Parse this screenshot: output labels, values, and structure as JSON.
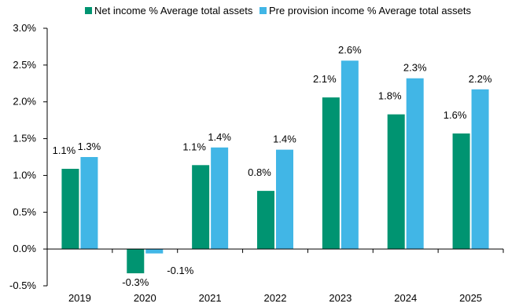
{
  "chart_data": {
    "type": "bar",
    "categories": [
      "2019",
      "2020",
      "2021",
      "2022",
      "2023",
      "2024",
      "2025"
    ],
    "series": [
      {
        "name": "Net income % Average total assets",
        "values": [
          1.09,
          -0.33,
          1.14,
          0.79,
          2.06,
          1.83,
          1.57
        ],
        "labels": [
          "1.1%",
          "-0.3%",
          "1.1%",
          "0.8%",
          "2.1%",
          "1.8%",
          "1.6%"
        ],
        "color": "#009471"
      },
      {
        "name": "Pre provision income % Average total assets",
        "values": [
          1.25,
          -0.06,
          1.38,
          1.35,
          2.56,
          2.32,
          2.17
        ],
        "labels": [
          "1.3%",
          "-0.1%",
          "1.4%",
          "1.4%",
          "2.6%",
          "2.3%",
          "2.2%"
        ],
        "color": "#41b6e6"
      }
    ],
    "ylim": [
      -0.5,
      3.0
    ],
    "yticks": [
      -0.5,
      0.0,
      0.5,
      1.0,
      1.5,
      2.0,
      2.5,
      3.0
    ],
    "ytick_labels": [
      "-0.5%",
      "0.0%",
      "0.5%",
      "1.0%",
      "1.5%",
      "2.0%",
      "2.5%",
      "3.0%"
    ],
    "legend_position": "top",
    "grid": false
  }
}
